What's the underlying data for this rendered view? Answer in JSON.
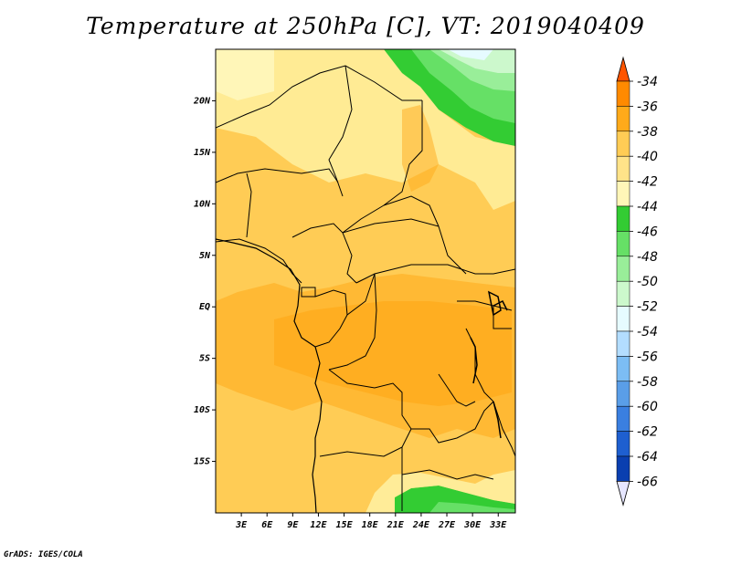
{
  "title": "Temperature at 250hPa [C], VT: 2019040409",
  "credit": "GrADS: IGES/COLA",
  "map": {
    "lon_range": [
      0,
      35
    ],
    "lat_range": [
      -20,
      25
    ],
    "lon_ticks": [
      {
        "value": 3,
        "label": "3E"
      },
      {
        "value": 6,
        "label": "6E"
      },
      {
        "value": 9,
        "label": "9E"
      },
      {
        "value": 12,
        "label": "12E"
      },
      {
        "value": 15,
        "label": "15E"
      },
      {
        "value": 18,
        "label": "18E"
      },
      {
        "value": 21,
        "label": "21E"
      },
      {
        "value": 24,
        "label": "24E"
      },
      {
        "value": 27,
        "label": "27E"
      },
      {
        "value": 30,
        "label": "30E"
      },
      {
        "value": 33,
        "label": "33E"
      }
    ],
    "lat_ticks": [
      {
        "value": 20,
        "label": "20N"
      },
      {
        "value": 15,
        "label": "15N"
      },
      {
        "value": 10,
        "label": "10N"
      },
      {
        "value": 5,
        "label": "5N"
      },
      {
        "value": 0,
        "label": "EQ"
      },
      {
        "value": -5,
        "label": "5S"
      },
      {
        "value": -10,
        "label": "10S"
      },
      {
        "value": -15,
        "label": "15S"
      }
    ]
  },
  "colorbar": {
    "levels": [
      "-34",
      "-36",
      "-38",
      "-40",
      "-42",
      "-44",
      "-46",
      "-48",
      "-50",
      "-52",
      "-54",
      "-56",
      "-58",
      "-60",
      "-62",
      "-64",
      "-66"
    ],
    "colors": [
      "#ff5500",
      "#ff8a00",
      "#ffaa1a",
      "#ffcc55",
      "#ffe389",
      "#fff6b8",
      "#33cc33",
      "#66e066",
      "#99ee99",
      "#ccf8cc",
      "#e6fbff",
      "#b3ddff",
      "#7cbdf4",
      "#5a9ee8",
      "#3a7fe0",
      "#1e5fd0",
      "#0a3fb0",
      "#000066"
    ]
  }
}
